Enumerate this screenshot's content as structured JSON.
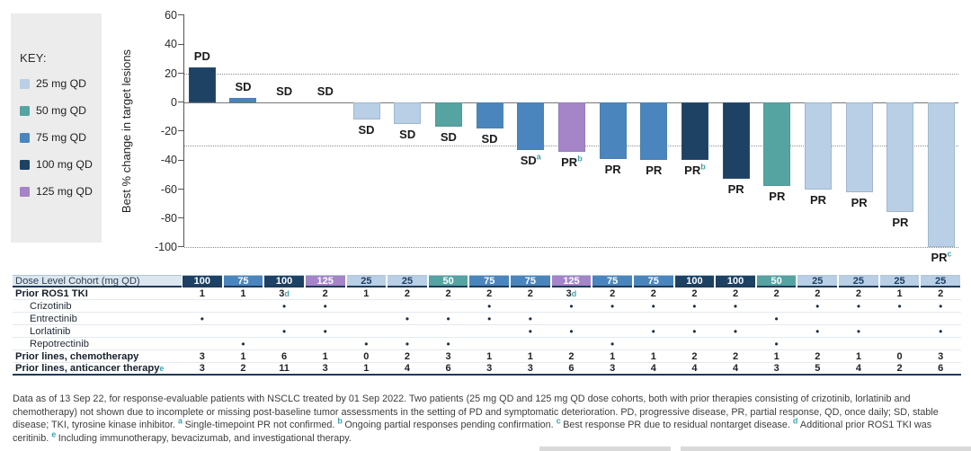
{
  "key": {
    "title": "KEY:",
    "items": [
      {
        "label": "25 mg QD",
        "dose": 25
      },
      {
        "label": "50 mg QD",
        "dose": 50
      },
      {
        "label": "75 mg QD",
        "dose": 75
      },
      {
        "label": "100 mg QD",
        "dose": 100
      },
      {
        "label": "125 mg QD",
        "dose": 125
      }
    ]
  },
  "colors": {
    "dose_25": "#b8cfe6",
    "dose_50": "#55a4a1",
    "dose_75": "#4a86bd",
    "dose_100": "#1e4264",
    "dose_125": "#a584c8",
    "dose_25_text": "#1c3c5e",
    "dose_other_text": "#ffffff",
    "superscript": "#3fa3ad"
  },
  "chart_data": {
    "type": "bar",
    "title": "",
    "xlabel": "",
    "ylabel": "Best % change in target lesions",
    "ylim": [
      -100,
      60
    ],
    "yticks": [
      60,
      40,
      20,
      0,
      -20,
      -40,
      -60,
      -80,
      -100
    ],
    "reference_lines_dotted": [
      20,
      -30,
      -100
    ],
    "zero_line": 0,
    "grid": false,
    "legend_position": "left-panel",
    "bars": [
      {
        "value": 24,
        "response": "PD",
        "sup": "",
        "dose_mg": 100
      },
      {
        "value": 3,
        "response": "SD",
        "sup": "",
        "dose_mg": 75
      },
      {
        "value": 0,
        "response": "SD",
        "sup": "",
        "dose_mg": 100
      },
      {
        "value": 0,
        "response": "SD",
        "sup": "",
        "dose_mg": 125
      },
      {
        "value": -12,
        "response": "SD",
        "sup": "",
        "dose_mg": 25
      },
      {
        "value": -15,
        "response": "SD",
        "sup": "",
        "dose_mg": 25
      },
      {
        "value": -17,
        "response": "SD",
        "sup": "",
        "dose_mg": 50
      },
      {
        "value": -18,
        "response": "SD",
        "sup": "",
        "dose_mg": 75
      },
      {
        "value": -33,
        "response": "SD",
        "sup": "a",
        "dose_mg": 75
      },
      {
        "value": -34,
        "response": "PR",
        "sup": "b",
        "dose_mg": 125
      },
      {
        "value": -39,
        "response": "PR",
        "sup": "",
        "dose_mg": 75
      },
      {
        "value": -40,
        "response": "PR",
        "sup": "",
        "dose_mg": 75
      },
      {
        "value": -40,
        "response": "PR",
        "sup": "b",
        "dose_mg": 100
      },
      {
        "value": -53,
        "response": "PR",
        "sup": "",
        "dose_mg": 100
      },
      {
        "value": -58,
        "response": "PR",
        "sup": "",
        "dose_mg": 50
      },
      {
        "value": -60,
        "response": "PR",
        "sup": "",
        "dose_mg": 25
      },
      {
        "value": -62,
        "response": "PR",
        "sup": "",
        "dose_mg": 25
      },
      {
        "value": -76,
        "response": "PR",
        "sup": "",
        "dose_mg": 25
      },
      {
        "value": -100,
        "response": "PR",
        "sup": "c",
        "dose_mg": 25
      }
    ]
  },
  "table": {
    "header_label": "Dose Level Cohort (mg QD)",
    "doses": [
      100,
      75,
      100,
      125,
      25,
      25,
      50,
      75,
      75,
      125,
      75,
      75,
      100,
      100,
      50,
      25,
      25,
      25,
      25
    ],
    "dot_symbol": "•",
    "rows": [
      {
        "label": "Prior ROS1 TKI",
        "bold": true,
        "indent": false,
        "values": [
          "1",
          "1",
          "3^d",
          "2",
          "1",
          "2",
          "2",
          "2",
          "2",
          "3^d",
          "2",
          "2",
          "2",
          "2",
          "2",
          "2",
          "2",
          "1",
          "2"
        ]
      },
      {
        "label": "Crizotinib",
        "bold": false,
        "indent": true,
        "dots": [
          3,
          4,
          8,
          10,
          11,
          12,
          13,
          14,
          16,
          17,
          18,
          19
        ]
      },
      {
        "label": "Entrectinib",
        "bold": false,
        "indent": true,
        "dots": [
          1,
          6,
          7,
          8,
          9,
          15
        ]
      },
      {
        "label": "Lorlatinib",
        "bold": false,
        "indent": true,
        "dots": [
          3,
          4,
          9,
          10,
          12,
          13,
          14,
          16,
          17,
          19
        ]
      },
      {
        "label": "Repotrectinib",
        "bold": false,
        "indent": true,
        "dots": [
          2,
          5,
          6,
          7,
          11,
          15
        ]
      },
      {
        "label": "Prior lines, chemotherapy",
        "bold": true,
        "indent": false,
        "values": [
          "3",
          "1",
          "6",
          "1",
          "0",
          "2",
          "3",
          "1",
          "1",
          "2",
          "1",
          "1",
          "2",
          "2",
          "1",
          "2",
          "1",
          "0",
          "3"
        ]
      },
      {
        "label": "Prior lines, anticancer therapy",
        "label_sup": "e",
        "bold": true,
        "indent": false,
        "values": [
          "3",
          "2",
          "11",
          "3",
          "1",
          "4",
          "6",
          "3",
          "3",
          "6",
          "3",
          "4",
          "4",
          "4",
          "3",
          "5",
          "4",
          "2",
          "6"
        ]
      }
    ]
  },
  "footnote": {
    "segments": [
      {
        "sup": "",
        "text": "Data as of 13 Sep 22, for response-evaluable patients with NSCLC treated by 01 Sep 2022. Two patients (25 mg QD and 125 mg QD dose cohorts, both with prior therapies consisting of crizotinib, lorlatinib and chemotherapy) not shown due to incomplete or missing post-baseline tumor assessments in the setting of PD and symptomatic deterioration. PD, progressive disease, PR, partial response, QD, once daily; SD, stable disease; TKI, tyrosine kinase inhibitor. "
      },
      {
        "sup": "a",
        "text": "Single-timepoint PR not confirmed. "
      },
      {
        "sup": "b",
        "text": "Ongoing partial responses pending confirmation. "
      },
      {
        "sup": "c",
        "text": "Best response PR due to residual nontarget disease. "
      },
      {
        "sup": "d",
        "text": "Additional prior ROS1 TKI was ceritinib. "
      },
      {
        "sup": "e",
        "text": "Including immunotherapy, bevacizumab, and investigational therapy."
      }
    ]
  }
}
